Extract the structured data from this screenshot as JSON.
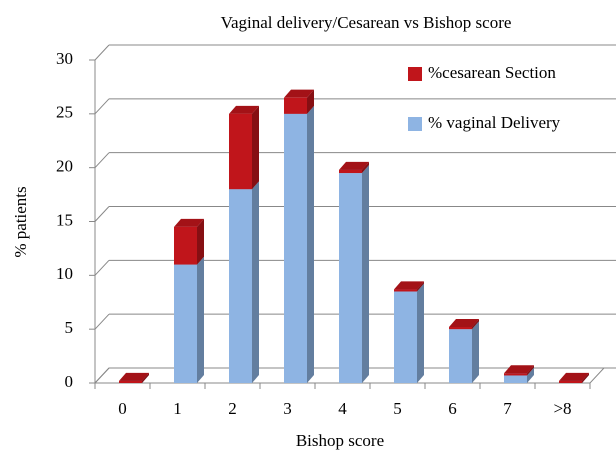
{
  "chart_data": {
    "type": "bar3d_stacked",
    "title": "Vaginal delivery/Cesarean  vs  Bishop score",
    "x_label": "Bishop score",
    "y_label": "% patients",
    "categories": [
      "0",
      "1",
      "2",
      "3",
      "4",
      "5",
      "6",
      "7",
      ">8"
    ],
    "series": [
      {
        "name": "% vaginal Delivery",
        "color": "#8eb4e3",
        "values": [
          0,
          11,
          18,
          25,
          19.5,
          8.5,
          5,
          0.7,
          0
        ]
      },
      {
        "name": "%cesarean Section",
        "color": "#c0151b",
        "values": [
          0.2,
          3.5,
          7,
          1.5,
          0.3,
          0.2,
          0.2,
          0.2,
          0.2
        ]
      }
    ],
    "ylim": [
      0,
      30
    ],
    "yticks": [
      0,
      5,
      10,
      15,
      20,
      25,
      30
    ],
    "grid": true
  }
}
